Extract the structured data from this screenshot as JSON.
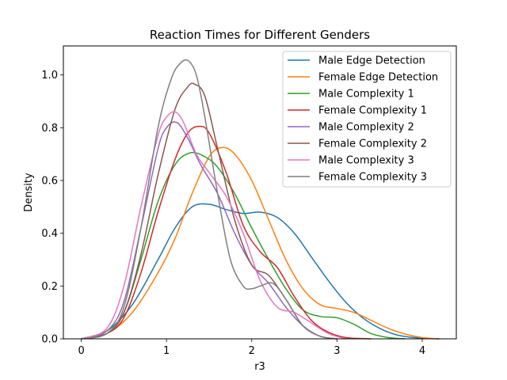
{
  "chart_data": {
    "type": "line",
    "title": "Reaction Times for Different Genders",
    "xlabel": "r3",
    "ylabel": "Density",
    "xlim": [
      -0.21,
      4.4
    ],
    "ylim": [
      0,
      1.11
    ],
    "xticks": [
      0,
      1,
      2,
      3,
      4
    ],
    "yticks": [
      0.0,
      0.2,
      0.4,
      0.6,
      0.8,
      1.0
    ],
    "xtick_labels": [
      "0",
      "1",
      "2",
      "3",
      "4"
    ],
    "ytick_labels": [
      "0.0",
      "0.2",
      "0.4",
      "0.6",
      "0.8",
      "1.0"
    ],
    "legend_position": "top-right",
    "series": [
      {
        "name": "Male Edge Detection",
        "color": "#1f77b4",
        "x": [
          0.0,
          0.3,
          0.6,
          0.9,
          1.1,
          1.3,
          1.5,
          1.7,
          1.9,
          2.1,
          2.3,
          2.5,
          2.7,
          2.9,
          3.1,
          3.3,
          3.5,
          3.7,
          3.9,
          4.1,
          4.2
        ],
        "y": [
          0.0,
          0.03,
          0.13,
          0.3,
          0.42,
          0.5,
          0.51,
          0.49,
          0.475,
          0.48,
          0.46,
          0.4,
          0.31,
          0.22,
          0.14,
          0.08,
          0.04,
          0.015,
          0.005,
          0.001,
          0.0
        ]
      },
      {
        "name": "Female Edge Detection",
        "color": "#ff7f0e",
        "x": [
          0.0,
          0.3,
          0.6,
          0.9,
          1.1,
          1.3,
          1.5,
          1.65,
          1.8,
          2.0,
          2.2,
          2.4,
          2.6,
          2.8,
          3.0,
          3.2,
          3.4,
          3.6,
          3.8,
          4.0,
          4.2
        ],
        "y": [
          0.0,
          0.02,
          0.1,
          0.25,
          0.38,
          0.55,
          0.69,
          0.725,
          0.7,
          0.6,
          0.45,
          0.3,
          0.19,
          0.13,
          0.115,
          0.1,
          0.07,
          0.04,
          0.018,
          0.005,
          0.0
        ]
      },
      {
        "name": "Male Complexity 1",
        "color": "#2ca02c",
        "x": [
          0.0,
          0.3,
          0.5,
          0.7,
          0.9,
          1.1,
          1.28,
          1.45,
          1.6,
          1.8,
          2.0,
          2.2,
          2.4,
          2.6,
          2.8,
          3.0,
          3.2,
          3.4,
          3.6,
          3.8
        ],
        "y": [
          0.0,
          0.03,
          0.1,
          0.3,
          0.52,
          0.66,
          0.705,
          0.69,
          0.65,
          0.55,
          0.42,
          0.3,
          0.19,
          0.11,
          0.085,
          0.08,
          0.055,
          0.02,
          0.005,
          0.0
        ]
      },
      {
        "name": "Female Complexity 1",
        "color": "#d62728",
        "x": [
          0.0,
          0.3,
          0.5,
          0.7,
          0.9,
          1.1,
          1.25,
          1.38,
          1.5,
          1.7,
          1.9,
          2.1,
          2.3,
          2.5,
          2.7,
          2.9,
          3.1,
          3.3,
          3.4
        ],
        "y": [
          0.0,
          0.02,
          0.08,
          0.25,
          0.48,
          0.68,
          0.78,
          0.805,
          0.78,
          0.63,
          0.43,
          0.33,
          0.27,
          0.16,
          0.07,
          0.025,
          0.005,
          0.001,
          0.0
        ]
      },
      {
        "name": "Male Complexity 2",
        "color": "#9467bd",
        "x": [
          0.0,
          0.3,
          0.5,
          0.7,
          0.9,
          1.0,
          1.12,
          1.25,
          1.4,
          1.6,
          1.8,
          2.0,
          2.2,
          2.4,
          2.6,
          2.8,
          3.0
        ],
        "y": [
          0.0,
          0.03,
          0.14,
          0.42,
          0.72,
          0.8,
          0.82,
          0.76,
          0.66,
          0.55,
          0.4,
          0.28,
          0.21,
          0.12,
          0.05,
          0.01,
          0.0
        ]
      },
      {
        "name": "Female Complexity 2",
        "color": "#8c564b",
        "x": [
          0.0,
          0.3,
          0.5,
          0.7,
          0.9,
          1.1,
          1.25,
          1.33,
          1.45,
          1.6,
          1.8,
          2.0,
          2.2,
          2.4,
          2.6,
          2.8,
          3.0
        ],
        "y": [
          0.0,
          0.02,
          0.1,
          0.32,
          0.62,
          0.87,
          0.955,
          0.965,
          0.92,
          0.72,
          0.45,
          0.28,
          0.24,
          0.15,
          0.05,
          0.01,
          0.0
        ]
      },
      {
        "name": "Male Complexity 3",
        "color": "#e377c2",
        "x": [
          0.0,
          0.3,
          0.5,
          0.7,
          0.9,
          1.0,
          1.1,
          1.2,
          1.35,
          1.5,
          1.7,
          1.9,
          2.1,
          2.3,
          2.5,
          2.7,
          2.9,
          3.1
        ],
        "y": [
          0.0,
          0.04,
          0.2,
          0.5,
          0.77,
          0.84,
          0.86,
          0.82,
          0.7,
          0.63,
          0.54,
          0.4,
          0.22,
          0.12,
          0.1,
          0.06,
          0.02,
          0.0
        ]
      },
      {
        "name": "Female Complexity 3",
        "color": "#7f7f7f",
        "x": [
          0.0,
          0.3,
          0.5,
          0.7,
          0.9,
          1.05,
          1.15,
          1.25,
          1.35,
          1.45,
          1.6,
          1.75,
          1.9,
          2.0,
          2.1,
          2.25,
          2.4,
          2.6,
          2.8,
          3.0
        ],
        "y": [
          0.0,
          0.02,
          0.12,
          0.42,
          0.8,
          0.98,
          1.04,
          1.055,
          1.0,
          0.84,
          0.55,
          0.3,
          0.2,
          0.19,
          0.2,
          0.21,
          0.15,
          0.05,
          0.01,
          0.0
        ]
      }
    ]
  }
}
